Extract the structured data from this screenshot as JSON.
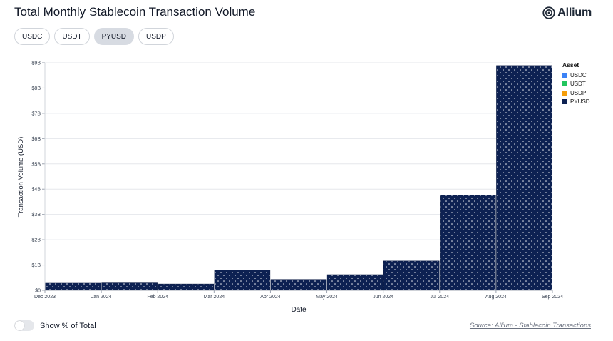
{
  "header": {
    "title": "Total Monthly Stablecoin Transaction Volume"
  },
  "brand": {
    "name": "Allium",
    "icon": "allium-logo-icon"
  },
  "filters": [
    {
      "label": "USDC",
      "active": false
    },
    {
      "label": "USDT",
      "active": false
    },
    {
      "label": "PYUSD",
      "active": true
    },
    {
      "label": "USDP",
      "active": false
    }
  ],
  "legend": {
    "title": "Asset",
    "items": [
      {
        "label": "USDC",
        "color": "#3b82f6"
      },
      {
        "label": "USDT",
        "color": "#22c55e"
      },
      {
        "label": "USDP",
        "color": "#f59e0b"
      },
      {
        "label": "PYUSD",
        "color": "#0d2152"
      }
    ]
  },
  "footer": {
    "toggle_label": "Show % of Total",
    "toggle_on": false,
    "source": "Source: Allium - Stablecoin Transactions"
  },
  "chart_data": {
    "type": "bar",
    "title": "Total Monthly Stablecoin Transaction Volume",
    "xlabel": "Date",
    "ylabel": "Transaction Volume (USD)",
    "ylim": [
      0,
      9000000000
    ],
    "y_ticks": [
      {
        "value": 0,
        "label": "$0"
      },
      {
        "value": 1000000000,
        "label": "$1B"
      },
      {
        "value": 2000000000,
        "label": "$2B"
      },
      {
        "value": 3000000000,
        "label": "$3B"
      },
      {
        "value": 4000000000,
        "label": "$4B"
      },
      {
        "value": 5000000000,
        "label": "$5B"
      },
      {
        "value": 6000000000,
        "label": "$6B"
      },
      {
        "value": 7000000000,
        "label": "$7B"
      },
      {
        "value": 8000000000,
        "label": "$8B"
      },
      {
        "value": 9000000000,
        "label": "$9B"
      }
    ],
    "x_ticks": [
      "Dec 2023",
      "Jan 2024",
      "Feb 2024",
      "Mar 2024",
      "Apr 2024",
      "May 2024",
      "Jun 2024",
      "Jul 2024",
      "Aug 2024",
      "Sep 2024"
    ],
    "grid": true,
    "legend_position": "right",
    "series": [
      {
        "name": "PYUSD",
        "color": "#0d2152",
        "pattern": "dots",
        "points": [
          {
            "period": "Dec 2023",
            "value": 310000000
          },
          {
            "period": "Jan 2024",
            "value": 320000000
          },
          {
            "period": "Feb 2024",
            "value": 250000000
          },
          {
            "period": "Mar 2024",
            "value": 800000000
          },
          {
            "period": "Apr 2024",
            "value": 430000000
          },
          {
            "period": "May 2024",
            "value": 620000000
          },
          {
            "period": "Jun 2024",
            "value": 1160000000
          },
          {
            "period": "Jul 2024",
            "value": 3770000000
          },
          {
            "period": "Aug 2024",
            "value": 8890000000
          }
        ]
      }
    ]
  }
}
